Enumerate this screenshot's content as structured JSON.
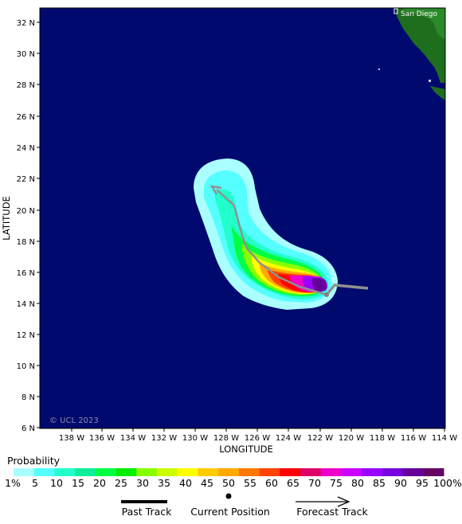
{
  "map": {
    "y_axis_title": "LATITUDE",
    "x_axis_title": "LONGITUDE",
    "watermark": "© UCL 2023",
    "city_label": "San Diego",
    "ocean_color": "#000a6e",
    "land_color": "#1e6e1e",
    "lat_ticks": [
      "32 N",
      "30 N",
      "28 N",
      "26 N",
      "24 N",
      "22 N",
      "20 N",
      "18 N",
      "16 N",
      "14 N",
      "12 N",
      "10 N",
      "8 N",
      "6 N"
    ],
    "lon_ticks": [
      "138 W",
      "136 W",
      "134 W",
      "132 W",
      "130 W",
      "128 W",
      "126 W",
      "124 W",
      "122 W",
      "120 W",
      "118 W",
      "116 W",
      "114 W"
    ]
  },
  "legend": {
    "title": "Probability",
    "labels": [
      "1%",
      "5",
      "10",
      "15",
      "20",
      "25",
      "30",
      "35",
      "40",
      "45",
      "50",
      "55",
      "60",
      "65",
      "70",
      "75",
      "80",
      "85",
      "90",
      "95",
      "100%"
    ],
    "colors": [
      "#aaffff",
      "#55ffff",
      "#22ffcc",
      "#11ee99",
      "#00ff44",
      "#00ee00",
      "#88ff00",
      "#ccff00",
      "#ffff00",
      "#ffcc00",
      "#ffaa00",
      "#ff7700",
      "#ff4400",
      "#ff0000",
      "#dd0066",
      "#ee00cc",
      "#cc00ff",
      "#9900ff",
      "#7700dd",
      "#660099",
      "#660066"
    ],
    "key_past": "Past Track",
    "key_current": "Current Position",
    "key_forecast": "Forecast Track"
  }
}
